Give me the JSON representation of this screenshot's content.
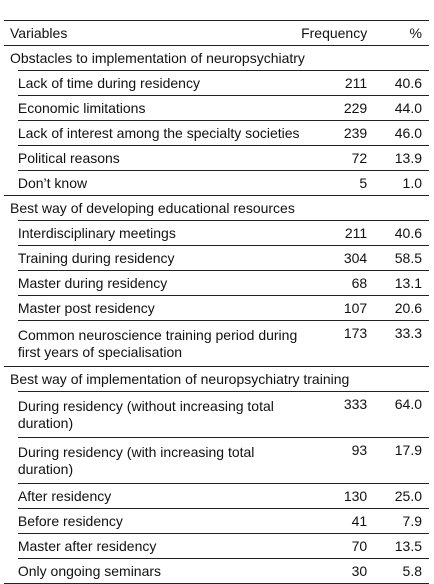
{
  "headers": {
    "variables": "Variables",
    "frequency": "Frequency",
    "percent": "%"
  },
  "sections": [
    {
      "title": "Obstacles to implementation of neuropsychiatry",
      "rows": [
        {
          "label": "Lack of time during residency",
          "frequency": "211",
          "percent": "40.6"
        },
        {
          "label": "Economic limitations",
          "frequency": "229",
          "percent": "44.0"
        },
        {
          "label": "Lack of interest among the specialty societies",
          "frequency": "239",
          "percent": "46.0"
        },
        {
          "label": "Political reasons",
          "frequency": "72",
          "percent": "13.9"
        },
        {
          "label": "Don’t know",
          "frequency": "5",
          "percent": "1.0"
        }
      ]
    },
    {
      "title": "Best way of developing educational resources",
      "rows": [
        {
          "label": "Interdisciplinary meetings",
          "frequency": "211",
          "percent": "40.6"
        },
        {
          "label": "Training during residency",
          "frequency": "304",
          "percent": "58.5"
        },
        {
          "label": "Master during residency",
          "frequency": "68",
          "percent": "13.1"
        },
        {
          "label": "Master post residency",
          "frequency": "107",
          "percent": "20.6"
        },
        {
          "label": "Common neuroscience training period during first years of specialisation",
          "frequency": "173",
          "percent": "33.3"
        }
      ]
    },
    {
      "title": "Best way of implementation of neuropsychiatry training",
      "rows": [
        {
          "label": "During residency (without increasing total duration)",
          "frequency": "333",
          "percent": "64.0"
        },
        {
          "label": "During residency (with increasing total duration)",
          "frequency": "93",
          "percent": "17.9"
        },
        {
          "label": "After residency",
          "frequency": "130",
          "percent": "25.0"
        },
        {
          "label": "Before residency",
          "frequency": "41",
          "percent": "7.9"
        },
        {
          "label": "Master after residency",
          "frequency": "70",
          "percent": "13.5"
        },
        {
          "label": "Only ongoing seminars",
          "frequency": "30",
          "percent": "5.8"
        }
      ]
    }
  ]
}
